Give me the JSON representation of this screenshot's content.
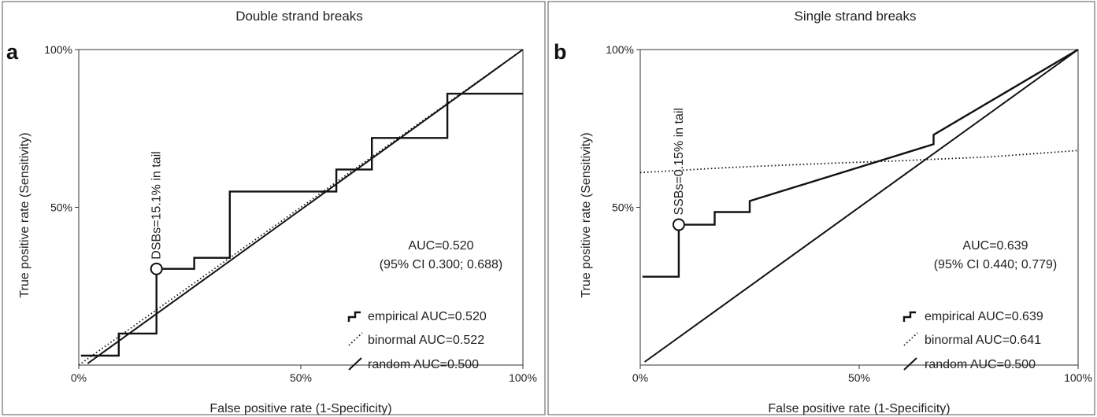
{
  "chart_data": [
    {
      "panel_letter": "a",
      "type": "line",
      "title": "Double strand breaks",
      "xlabel": "False positive rate (1-Specificity)",
      "ylabel": "True positive rate (Sensitivity)",
      "xlim": [
        0,
        100
      ],
      "ylim": [
        0,
        100
      ],
      "x_ticks": [
        "0%",
        "50%",
        "100%"
      ],
      "y_ticks": [
        "50%",
        "100%"
      ],
      "grid": false,
      "auc_text": "AUC=0.520",
      "ci_text": "(95% CI 0.300; 0.688)",
      "callout": {
        "text": "DSBs=15.1% in tail",
        "x": 17.5,
        "y": 30.5
      },
      "legend_position": "bottom-right",
      "series": [
        {
          "name": "empirical AUC=0.520",
          "style": "step",
          "x": [
            0.5,
            9,
            9,
            17.5,
            17.5,
            26,
            26,
            34,
            34,
            58,
            58,
            66,
            66,
            75,
            75,
            83,
            83,
            100
          ],
          "y": [
            3,
            3,
            10,
            10,
            30.5,
            30.5,
            34,
            34,
            55,
            55,
            62,
            62,
            72,
            72,
            72,
            72,
            86,
            86
          ]
        },
        {
          "name": "binormal AUC=0.522",
          "style": "dotted",
          "x": [
            0,
            100
          ],
          "y": [
            0,
            100
          ]
        },
        {
          "name": "random AUC=0.500",
          "style": "solid",
          "x": [
            2,
            100
          ],
          "y": [
            0.5,
            100
          ]
        }
      ]
    },
    {
      "panel_letter": "b",
      "type": "line",
      "title": "Single strand breaks",
      "xlabel": "False positive rate (1-Specificity)",
      "ylabel": "True positive rate (Sensitivity)",
      "xlim": [
        0,
        100
      ],
      "ylim": [
        0,
        100
      ],
      "x_ticks": [
        "0%",
        "50%",
        "100%"
      ],
      "y_ticks": [
        "50%",
        "100%"
      ],
      "grid": false,
      "auc_text": "AUC=0.639",
      "ci_text": "(95% CI 0.440; 0.779)",
      "callout": {
        "text": "SSBs=0.15% in tail",
        "x": 8.8,
        "y": 44.5
      },
      "legend_position": "bottom-right",
      "series": [
        {
          "name": "empirical AUC=0.639",
          "style": "step",
          "x": [
            0.5,
            8.8,
            8.8,
            17,
            17,
            21,
            21,
            25,
            25,
            67,
            67,
            100
          ],
          "y": [
            28,
            28,
            44.5,
            44.5,
            48.5,
            48.5,
            48.5,
            48.5,
            52,
            70,
            73,
            100
          ]
        },
        {
          "name": "binormal AUC=0.641",
          "style": "dotted",
          "x": [
            0,
            20,
            40,
            60,
            80,
            100
          ],
          "y": [
            61,
            62.6,
            63.8,
            64.8,
            66,
            68
          ]
        },
        {
          "name": "random AUC=0.500",
          "style": "solid",
          "x": [
            1,
            100
          ],
          "y": [
            1,
            100
          ]
        }
      ]
    }
  ]
}
